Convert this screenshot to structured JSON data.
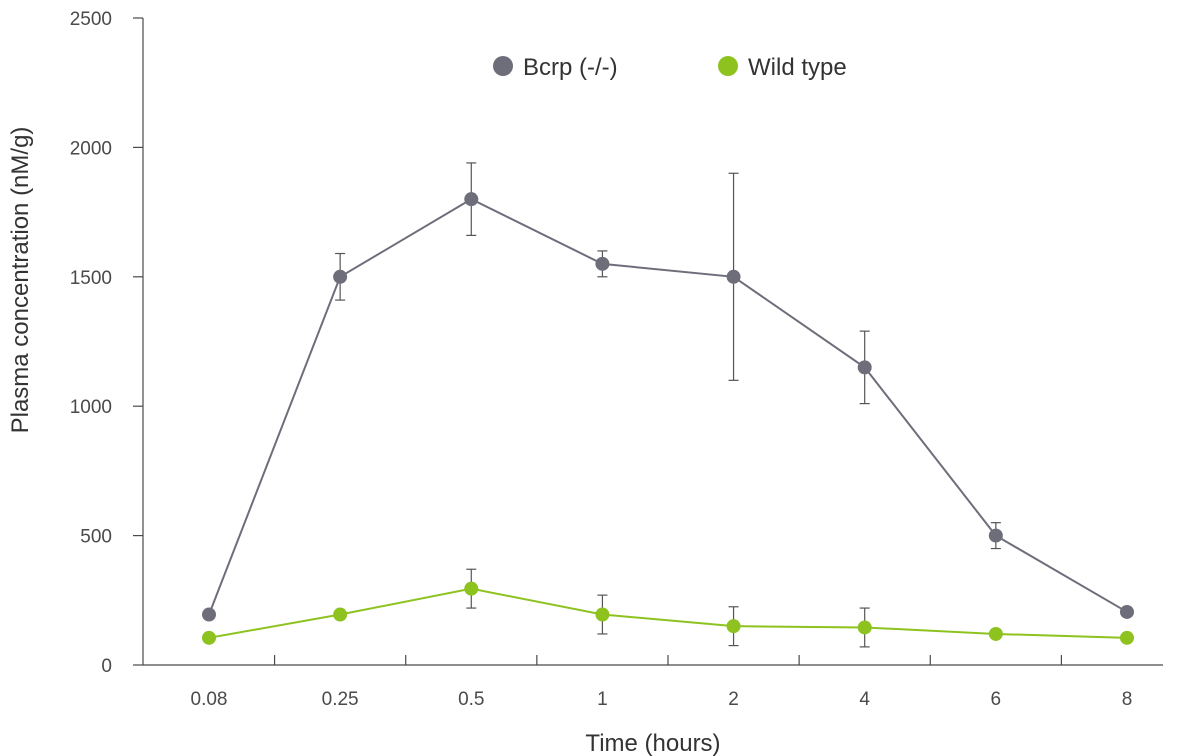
{
  "chart_data": {
    "type": "line",
    "categories": [
      "0.08",
      "0.25",
      "0.5",
      "1",
      "2",
      "4",
      "6",
      "8"
    ],
    "xlabel": "Time (hours)",
    "ylabel": "Plasma concentration (nM/g)",
    "ylim": [
      0,
      2500
    ],
    "yticks": [
      0,
      500,
      1000,
      1500,
      2000,
      2500
    ],
    "grid": false,
    "legend_position": "top-center",
    "series": [
      {
        "name": "Bcrp (-/-)",
        "color": "#6e6e7a",
        "values": [
          195,
          1500,
          1800,
          1550,
          1500,
          1150,
          500,
          205
        ],
        "error": [
          null,
          90,
          140,
          50,
          400,
          140,
          50,
          null
        ]
      },
      {
        "name": "Wild type",
        "color": "#8dc21f",
        "values": [
          105,
          195,
          295,
          195,
          150,
          145,
          120,
          105
        ],
        "error": [
          null,
          null,
          75,
          75,
          75,
          75,
          null,
          null
        ]
      }
    ]
  }
}
